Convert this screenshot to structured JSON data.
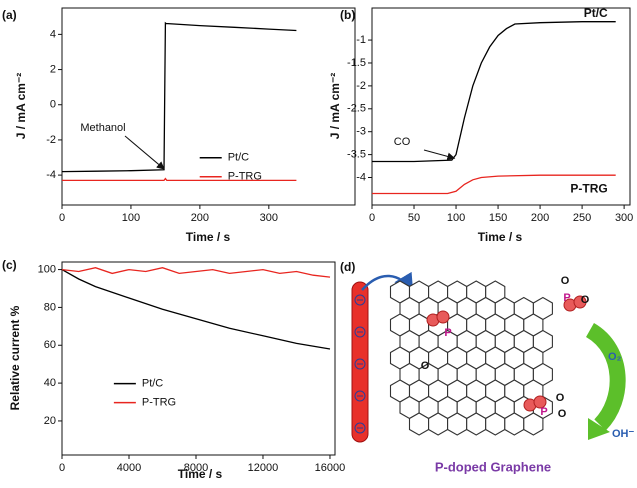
{
  "chart_data": [
    {
      "type": "line",
      "panel_label": "(a)",
      "xlabel": "Time / s",
      "ylabel": "J / mA cm⁻²",
      "xlim": [
        0,
        425
      ],
      "ylim": [
        -5.7,
        5.5
      ],
      "xticks": [
        0,
        100,
        200,
        300
      ],
      "yticks": [
        -4,
        -2,
        0,
        2,
        4
      ],
      "legend": "center right",
      "annotations": [
        {
          "text": "Methanol"
        }
      ],
      "series": [
        {
          "name": "Pt/C",
          "color": "#000000",
          "x": [
            0,
            50,
            100,
            148,
            150,
            151,
            200,
            250,
            300,
            340
          ],
          "values": [
            -3.8,
            -3.78,
            -3.75,
            -3.7,
            4.65,
            4.62,
            4.5,
            4.4,
            4.3,
            4.22
          ]
        },
        {
          "name": "P-TRG",
          "color": "#e8251f",
          "x": [
            0,
            148,
            150,
            152,
            200,
            340
          ],
          "values": [
            -4.3,
            -4.3,
            -4.2,
            -4.3,
            -4.3,
            -4.3
          ]
        }
      ]
    },
    {
      "type": "line",
      "panel_label": "(b)",
      "xlabel": "Time / s",
      "ylabel": "J / mA cm⁻²",
      "xlim": [
        0,
        307
      ],
      "ylim": [
        -4.6,
        -0.3
      ],
      "xticks": [
        0,
        50,
        100,
        150,
        200,
        250,
        300
      ],
      "yticks": [
        -1,
        -1.5,
        -2,
        -2.5,
        -3,
        -3.5,
        -4
      ],
      "legend": "inline",
      "annotations": [
        {
          "text": "CO"
        }
      ],
      "series": [
        {
          "name": "Pt/C",
          "color": "#000000",
          "x": [
            0,
            50,
            95,
            100,
            110,
            120,
            130,
            140,
            150,
            160,
            170,
            200,
            250,
            290
          ],
          "values": [
            -3.65,
            -3.65,
            -3.62,
            -3.5,
            -2.7,
            -2.0,
            -1.5,
            -1.15,
            -0.9,
            -0.75,
            -0.65,
            -0.62,
            -0.6,
            -0.6
          ]
        },
        {
          "name": "P-TRG",
          "color": "#e8251f",
          "x": [
            0,
            90,
            100,
            110,
            120,
            130,
            150,
            200,
            290
          ],
          "values": [
            -4.35,
            -4.35,
            -4.3,
            -4.15,
            -4.05,
            -4.0,
            -3.97,
            -3.95,
            -3.95
          ]
        }
      ]
    },
    {
      "type": "line",
      "panel_label": "(c)",
      "xlabel": "Time / s",
      "ylabel": "Relative current %",
      "xlim": [
        0,
        16300
      ],
      "ylim": [
        2,
        104
      ],
      "xticks": [
        0,
        4000,
        8000,
        12000,
        16000
      ],
      "yticks": [
        100,
        80,
        60,
        40,
        20
      ],
      "legend": "center left",
      "annotations": [],
      "series": [
        {
          "name": "Pt/C",
          "color": "#000000",
          "x": [
            0,
            1000,
            2000,
            4000,
            6000,
            8000,
            10000,
            12000,
            14000,
            16000
          ],
          "values": [
            100,
            95,
            91,
            85,
            79,
            74,
            69,
            65,
            61,
            58
          ]
        },
        {
          "name": "P-TRG",
          "color": "#e8251f",
          "x": [
            0,
            1000,
            2000,
            3000,
            4000,
            5000,
            6000,
            7000,
            8000,
            9000,
            10000,
            11000,
            12000,
            13000,
            14000,
            15000,
            16000
          ],
          "values": [
            100,
            99,
            101,
            98,
            100,
            99,
            101,
            98,
            99,
            100,
            98,
            99,
            100,
            98,
            99,
            97,
            96
          ]
        }
      ]
    }
  ],
  "diagram": {
    "panel_label": "(d)",
    "title": "P-doped Graphene",
    "oxygen": "O₂",
    "electrons": "4e⁻",
    "hydroxide": "OH⁻",
    "groups": [
      [
        "P",
        "O"
      ],
      [
        "P",
        "O",
        "O"
      ],
      [
        "P",
        "O",
        "O"
      ]
    ]
  }
}
